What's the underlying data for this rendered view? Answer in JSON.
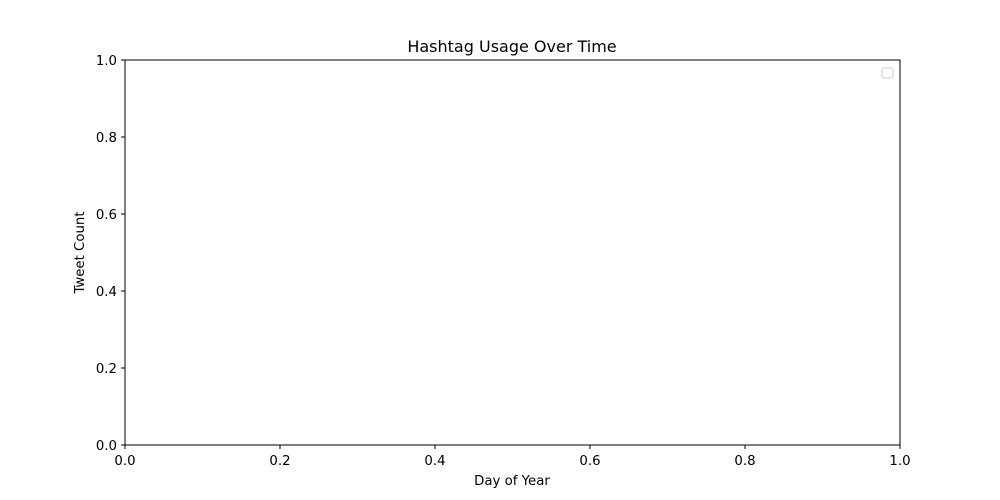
{
  "chart_data": {
    "type": "line",
    "title": "Hashtag Usage Over Time",
    "xlabel": "Day of Year",
    "ylabel": "Tweet Count",
    "xlim": [
      0,
      1
    ],
    "ylim": [
      0,
      1
    ],
    "xticks": [
      "0.0",
      "0.2",
      "0.4",
      "0.6",
      "0.8",
      "1.0"
    ],
    "yticks": [
      "0.0",
      "0.2",
      "0.4",
      "0.6",
      "0.8",
      "1.0"
    ],
    "series": [],
    "legend": {
      "placement": "top-right",
      "entries": []
    },
    "grid": false
  }
}
